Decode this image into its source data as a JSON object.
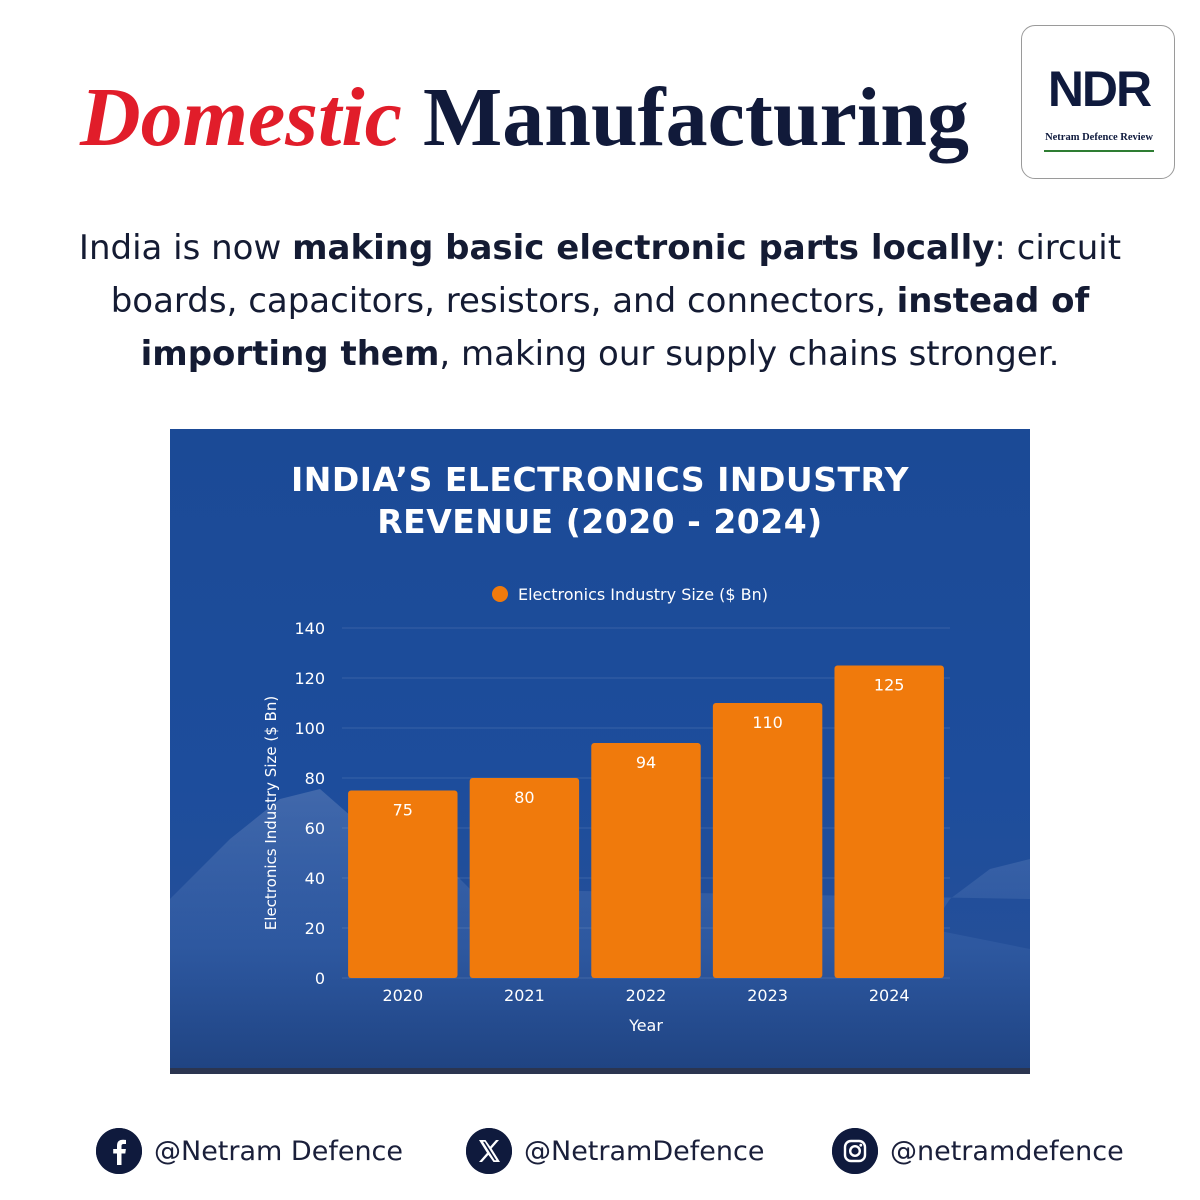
{
  "header": {
    "title_accent": "Domestic",
    "title_main": "Manufacturing"
  },
  "logo": {
    "mark": "NDR",
    "tagline": "Netram Defence Review"
  },
  "intro": {
    "p1": "India is now ",
    "b1": "making basic electronic parts locally",
    "p2": ": circuit boards, capacitors, resistors, and connectors, ",
    "b2": "instead of importing them",
    "p3": ", making our supply chains stronger."
  },
  "chart_data": {
    "type": "bar",
    "title_line1": "INDIA’S ELECTRONICS INDUSTRY",
    "title_line2": "REVENUE (2020 - 2024)",
    "categories": [
      "2020",
      "2021",
      "2022",
      "2023",
      "2024"
    ],
    "series": [
      {
        "name": "Electronics Industry Size ($ Bn)",
        "values": [
          75,
          80,
          94,
          110,
          125
        ]
      }
    ],
    "xlabel": "Year",
    "ylabel": "Electronics Industry Size ($ Bn)",
    "ylim": [
      0,
      140
    ],
    "yticks": [
      0,
      20,
      40,
      60,
      80,
      100,
      120,
      140
    ],
    "grid": true,
    "data_labels": true,
    "bar_color": "#f07a0c",
    "legend_position": "top-center"
  },
  "social": {
    "facebook": "@Netram Defence",
    "x": "@NetramDefence",
    "instagram": "@netramdefence",
    "icons": [
      "facebook-icon",
      "x-icon",
      "instagram-icon"
    ]
  },
  "colors": {
    "accent_red": "#e11d2a",
    "navy": "#111a3a",
    "chart_bg": "#1d4d9c",
    "bar": "#f07a0c"
  }
}
